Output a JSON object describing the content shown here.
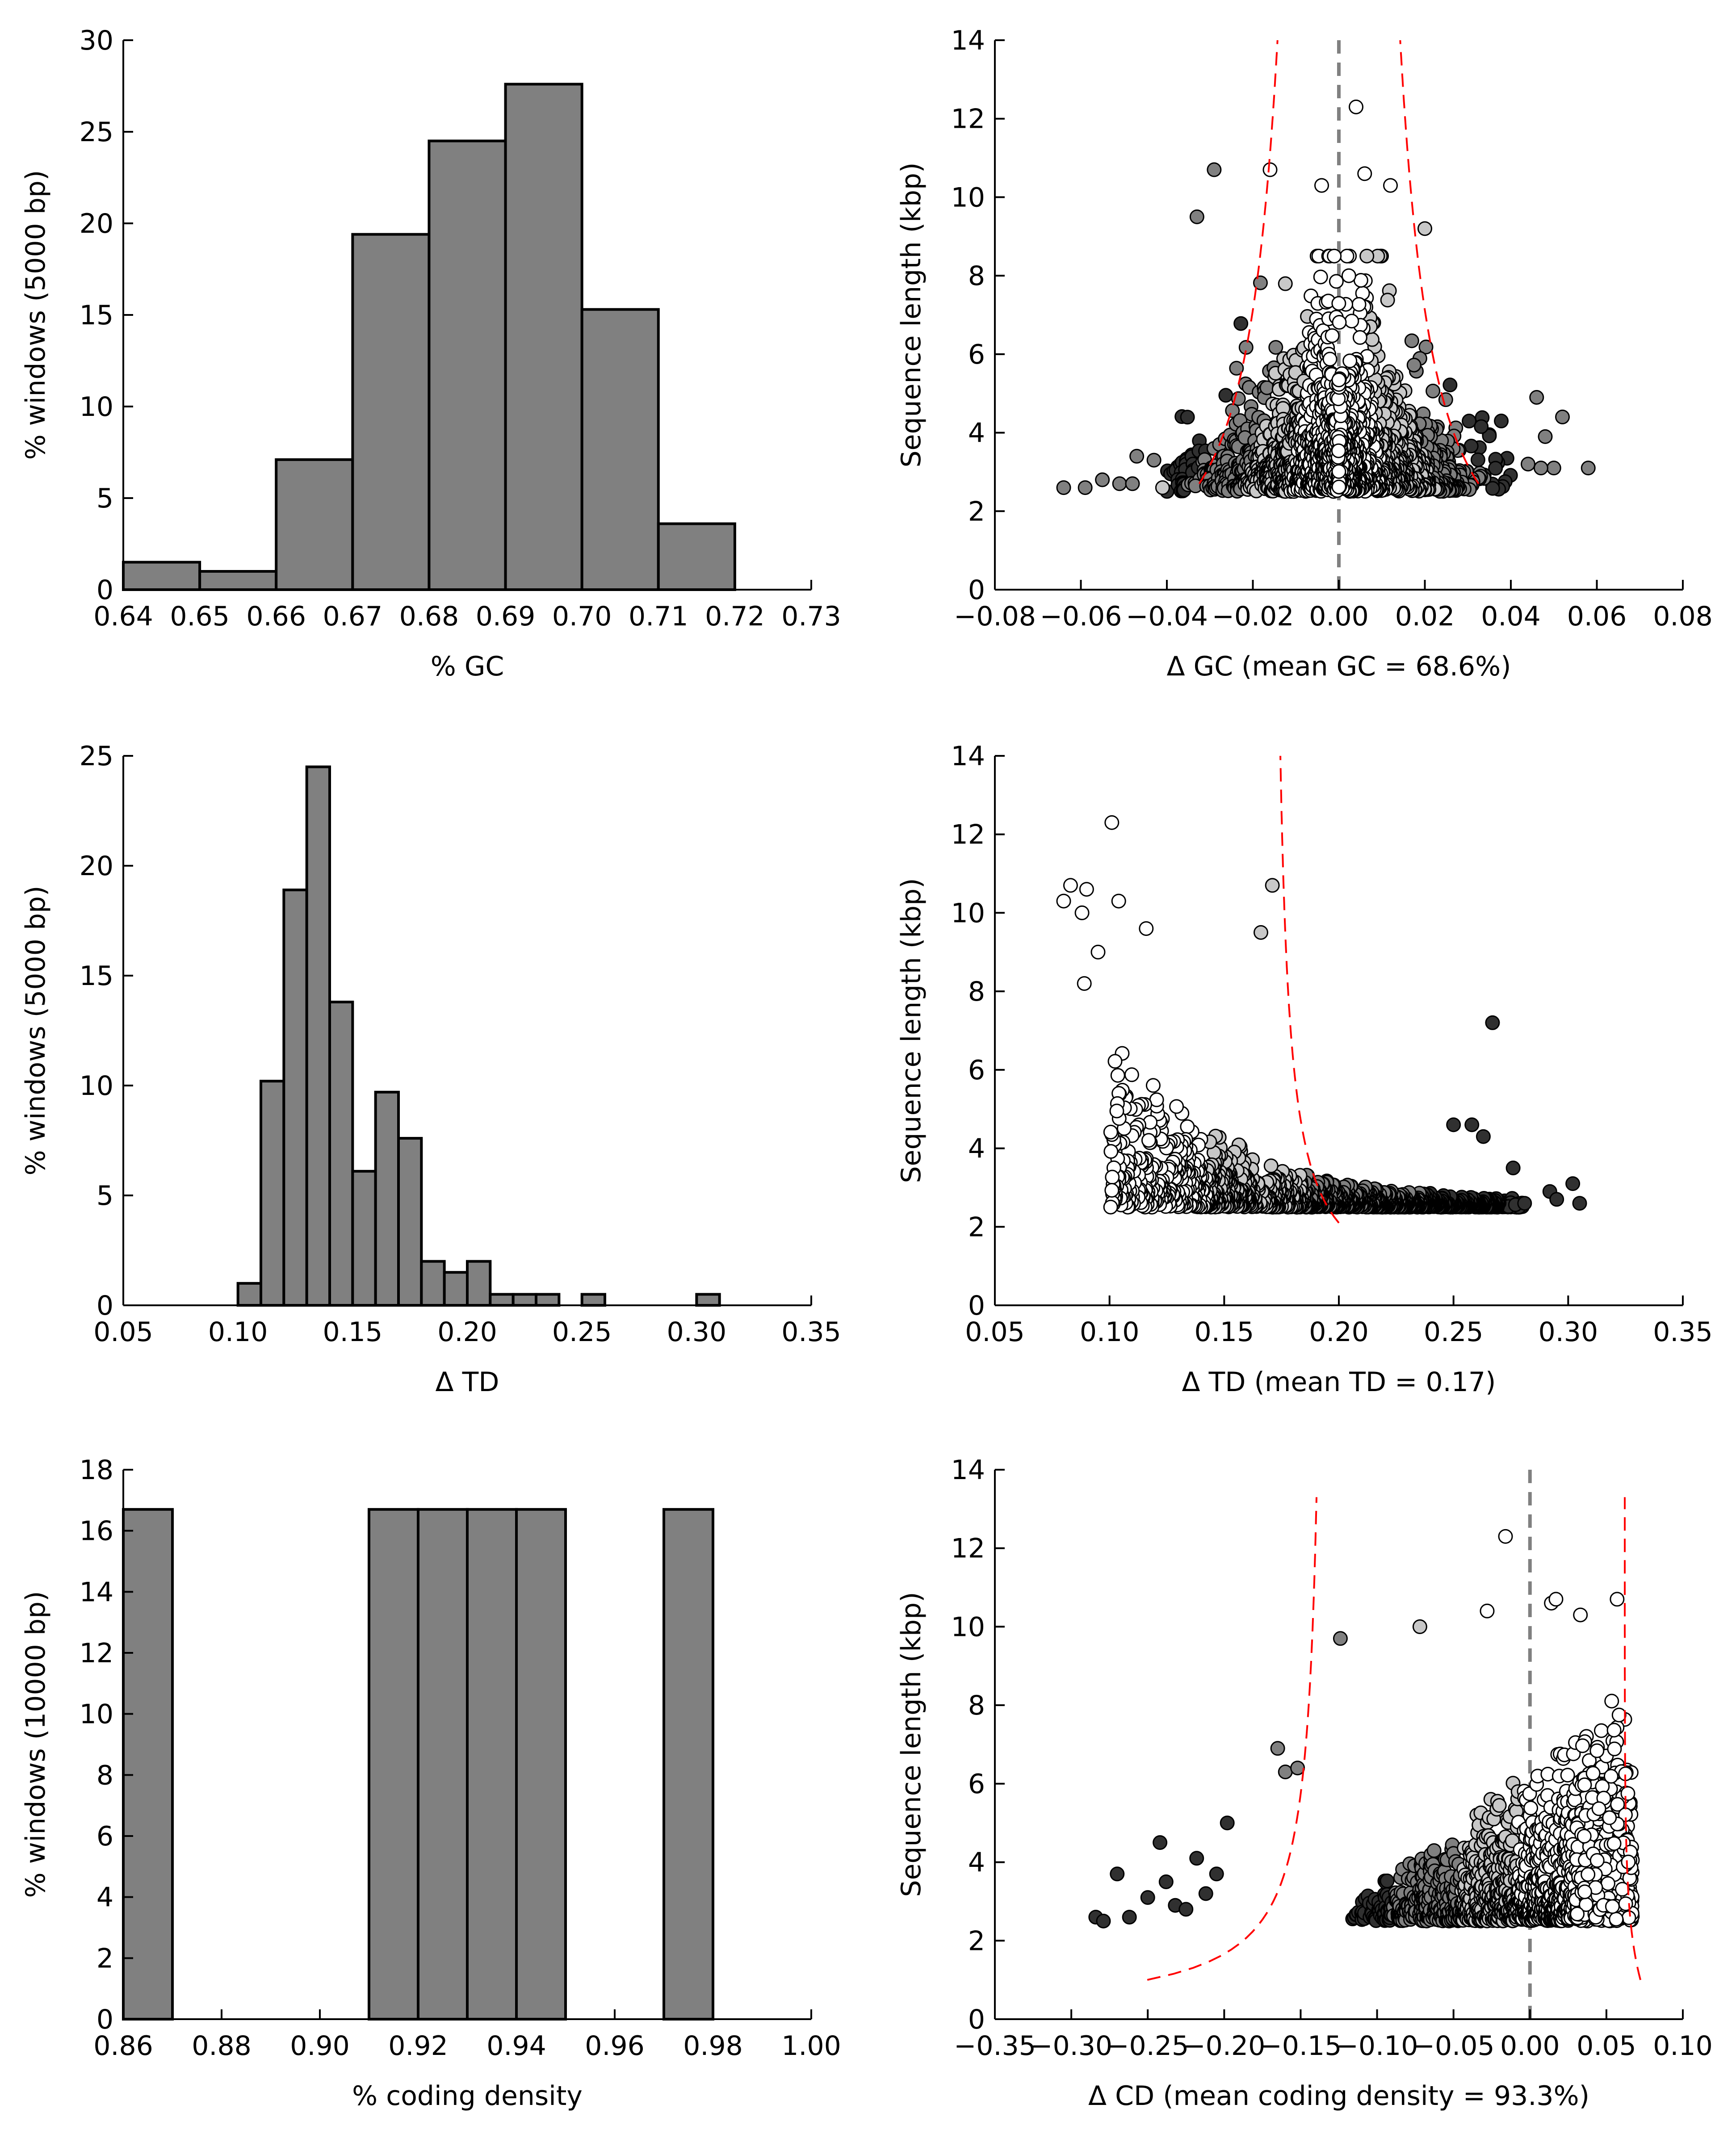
{
  "chart_data": [
    {
      "id": "gc-hist",
      "type": "bar",
      "xlabel": "% GC",
      "ylabel": "% windows (5000 bp)",
      "xlim": [
        0.64,
        0.73
      ],
      "ylim": [
        0,
        30
      ],
      "xticks": [
        "0.64",
        "0.65",
        "0.66",
        "0.67",
        "0.68",
        "0.69",
        "0.70",
        "0.71",
        "0.72",
        "0.73"
      ],
      "yticks": [
        "0",
        "5",
        "10",
        "15",
        "20",
        "25",
        "30"
      ],
      "bin_width": 0.01,
      "bins": [
        {
          "x0": 0.64,
          "value": 1.5
        },
        {
          "x0": 0.65,
          "value": 1.0
        },
        {
          "x0": 0.66,
          "value": 7.1
        },
        {
          "x0": 0.67,
          "value": 19.4
        },
        {
          "x0": 0.68,
          "value": 24.5
        },
        {
          "x0": 0.69,
          "value": 27.6
        },
        {
          "x0": 0.7,
          "value": 15.3
        },
        {
          "x0": 0.71,
          "value": 3.6
        }
      ],
      "bar_color": "#808080"
    },
    {
      "id": "gc-scatter",
      "type": "scatter",
      "xlabel": "Δ GC (mean GC = 68.6%)",
      "ylabel": "Sequence length (kbp)",
      "xlim": [
        -0.08,
        0.08
      ],
      "ylim": [
        0,
        14
      ],
      "xticks": [
        "−0.08",
        "−0.06",
        "−0.04",
        "−0.02",
        "0.00",
        "0.02",
        "0.04",
        "0.06",
        "0.08"
      ],
      "yticks": [
        "0",
        "2",
        "4",
        "6",
        "8",
        "10",
        "12",
        "14"
      ],
      "dashed_zero_line": true,
      "cloud": {
        "count": 1500,
        "xmean": 0.0,
        "xsd": 0.016,
        "ymin": 2.5,
        "scale": 1.1,
        "xmaxabs": 0.04
      },
      "points": [
        {
          "x": -0.064,
          "y": 2.6
        },
        {
          "x": -0.059,
          "y": 2.6
        },
        {
          "x": -0.055,
          "y": 2.8
        },
        {
          "x": -0.051,
          "y": 2.7
        },
        {
          "x": -0.048,
          "y": 2.7
        },
        {
          "x": -0.047,
          "y": 3.4
        },
        {
          "x": -0.043,
          "y": 3.3
        },
        {
          "x": -0.041,
          "y": 2.6
        },
        {
          "x": -0.033,
          "y": 9.5
        },
        {
          "x": -0.029,
          "y": 10.7
        },
        {
          "x": -0.016,
          "y": 10.7
        },
        {
          "x": -0.004,
          "y": 10.3
        },
        {
          "x": 0.004,
          "y": 12.3
        },
        {
          "x": 0.006,
          "y": 10.6
        },
        {
          "x": 0.012,
          "y": 10.3
        },
        {
          "x": 0.02,
          "y": 9.2
        },
        {
          "x": 0.046,
          "y": 4.9
        },
        {
          "x": 0.048,
          "y": 3.9
        },
        {
          "x": 0.052,
          "y": 4.4
        },
        {
          "x": 0.05,
          "y": 3.1
        },
        {
          "x": 0.058,
          "y": 3.1
        },
        {
          "x": 0.044,
          "y": 3.2
        },
        {
          "x": 0.047,
          "y": 3.1
        }
      ],
      "threshold_curve": {
        "const": 0.00285,
        "offset": 0.0,
        "y_from": 2.7,
        "y_to": 14,
        "x_to_right": 0.074
      },
      "colors": {
        "light": "#ffffff",
        "mid": "#c8c8c8",
        "dark": "#808080",
        "darker": "#303030",
        "curve": "#ff0000"
      }
    },
    {
      "id": "td-hist",
      "type": "bar",
      "xlabel": "Δ TD",
      "ylabel": "% windows (5000 bp)",
      "xlim": [
        0.05,
        0.35
      ],
      "ylim": [
        0,
        25
      ],
      "xticks": [
        "0.05",
        "0.10",
        "0.15",
        "0.20",
        "0.25",
        "0.30",
        "0.35"
      ],
      "yticks": [
        "0",
        "5",
        "10",
        "15",
        "20",
        "25"
      ],
      "bin_width": 0.01,
      "bins": [
        {
          "x0": 0.1,
          "value": 1.0
        },
        {
          "x0": 0.11,
          "value": 10.2
        },
        {
          "x0": 0.12,
          "value": 18.9
        },
        {
          "x0": 0.13,
          "value": 24.5
        },
        {
          "x0": 0.14,
          "value": 13.8
        },
        {
          "x0": 0.15,
          "value": 6.1
        },
        {
          "x0": 0.16,
          "value": 9.7
        },
        {
          "x0": 0.17,
          "value": 7.6
        },
        {
          "x0": 0.18,
          "value": 2.0
        },
        {
          "x0": 0.19,
          "value": 1.5
        },
        {
          "x0": 0.2,
          "value": 2.0
        },
        {
          "x0": 0.21,
          "value": 0.5
        },
        {
          "x0": 0.22,
          "value": 0.5
        },
        {
          "x0": 0.23,
          "value": 0.5
        },
        {
          "x0": 0.25,
          "value": 0.5
        },
        {
          "x0": 0.3,
          "value": 0.5
        }
      ],
      "bar_color": "#808080"
    },
    {
      "id": "td-scatter",
      "type": "scatter",
      "xlabel": "Δ TD (mean TD = 0.17)",
      "ylabel": "Sequence length (kbp)",
      "xlim": [
        0.05,
        0.35
      ],
      "ylim": [
        0,
        14
      ],
      "xticks": [
        "0.05",
        "0.10",
        "0.15",
        "0.20",
        "0.25",
        "0.30",
        "0.35"
      ],
      "yticks": [
        "0",
        "2",
        "4",
        "6",
        "8",
        "10",
        "12",
        "14"
      ],
      "dashed_zero_line": false,
      "cloud": {
        "count": 1500,
        "xmin": 0.1,
        "xmax": 0.28,
        "ymin": 2.5,
        "scale": 1.0
      },
      "points": [
        {
          "x": 0.08,
          "y": 10.3
        },
        {
          "x": 0.083,
          "y": 10.7
        },
        {
          "x": 0.088,
          "y": 10.0
        },
        {
          "x": 0.09,
          "y": 10.6
        },
        {
          "x": 0.101,
          "y": 12.3
        },
        {
          "x": 0.104,
          "y": 10.3
        },
        {
          "x": 0.089,
          "y": 8.2
        },
        {
          "x": 0.095,
          "y": 9.0
        },
        {
          "x": 0.116,
          "y": 9.6
        },
        {
          "x": 0.171,
          "y": 10.7
        },
        {
          "x": 0.166,
          "y": 9.5
        },
        {
          "x": 0.267,
          "y": 7.2
        },
        {
          "x": 0.281,
          "y": 2.6
        },
        {
          "x": 0.292,
          "y": 2.9
        },
        {
          "x": 0.302,
          "y": 3.1
        },
        {
          "x": 0.305,
          "y": 2.6
        },
        {
          "x": 0.295,
          "y": 2.7
        },
        {
          "x": 0.276,
          "y": 3.5
        },
        {
          "x": 0.258,
          "y": 4.6
        },
        {
          "x": 0.263,
          "y": 4.3
        },
        {
          "x": 0.25,
          "y": 4.6
        }
      ],
      "threshold_curve": {
        "const": 0.0063,
        "offset": 0.0,
        "y_from": 2.1,
        "y_to": 14,
        "one_sided": true
      },
      "colors": {
        "light": "#ffffff",
        "mid": "#c8c8c8",
        "dark": "#808080",
        "darker": "#303030",
        "curve": "#ff0000"
      }
    },
    {
      "id": "cd-hist",
      "type": "bar",
      "xlabel": "% coding density",
      "ylabel": "% windows (10000 bp)",
      "xlim": [
        0.86,
        1.0
      ],
      "ylim": [
        0,
        18
      ],
      "xticks": [
        "0.86",
        "0.88",
        "0.90",
        "0.92",
        "0.94",
        "0.96",
        "0.98",
        "1.00"
      ],
      "yticks": [
        "0",
        "2",
        "4",
        "6",
        "8",
        "10",
        "12",
        "14",
        "16",
        "18"
      ],
      "bin_width": 0.01,
      "bins": [
        {
          "x0": 0.86,
          "value": 16.7
        },
        {
          "x0": 0.91,
          "value": 16.7
        },
        {
          "x0": 0.92,
          "value": 16.7
        },
        {
          "x0": 0.93,
          "value": 16.7
        },
        {
          "x0": 0.94,
          "value": 16.7
        },
        {
          "x0": 0.97,
          "value": 16.7
        }
      ],
      "bar_color": "#808080"
    },
    {
      "id": "cd-scatter",
      "type": "scatter",
      "xlabel": "Δ CD (mean coding density = 93.3%)",
      "ylabel": "Sequence length (kbp)",
      "xlim": [
        -0.35,
        0.1
      ],
      "ylim": [
        0,
        14
      ],
      "xticks": [
        "−0.35",
        "−0.30",
        "−0.25",
        "−0.20",
        "−0.15",
        "−0.10",
        "−0.05",
        "0.00",
        "0.05",
        "0.10"
      ],
      "yticks": [
        "0",
        "2",
        "4",
        "6",
        "8",
        "10",
        "12",
        "14"
      ],
      "dashed_zero_line": true,
      "cloud": {
        "count": 1500,
        "xmin": -0.12,
        "xmax": 0.067,
        "ymin": 2.5,
        "scale": 1.0
      },
      "points": [
        {
          "x": -0.284,
          "y": 2.6
        },
        {
          "x": -0.279,
          "y": 2.5
        },
        {
          "x": -0.27,
          "y": 3.7
        },
        {
          "x": -0.262,
          "y": 2.6
        },
        {
          "x": -0.25,
          "y": 3.1
        },
        {
          "x": -0.242,
          "y": 4.5
        },
        {
          "x": -0.238,
          "y": 3.5
        },
        {
          "x": -0.232,
          "y": 2.9
        },
        {
          "x": -0.225,
          "y": 2.8
        },
        {
          "x": -0.218,
          "y": 4.1
        },
        {
          "x": -0.212,
          "y": 3.2
        },
        {
          "x": -0.205,
          "y": 3.7
        },
        {
          "x": -0.198,
          "y": 5.0
        },
        {
          "x": -0.165,
          "y": 6.9
        },
        {
          "x": -0.16,
          "y": 6.3
        },
        {
          "x": -0.152,
          "y": 6.4
        },
        {
          "x": -0.124,
          "y": 9.7
        },
        {
          "x": -0.072,
          "y": 10.0
        },
        {
          "x": -0.028,
          "y": 10.4
        },
        {
          "x": -0.016,
          "y": 12.3
        },
        {
          "x": 0.014,
          "y": 10.6
        },
        {
          "x": 0.017,
          "y": 10.7
        },
        {
          "x": 0.033,
          "y": 10.3
        },
        {
          "x": 0.057,
          "y": 10.7
        }
      ],
      "threshold_curve": {
        "const": 0.0235,
        "offset": -0.1328,
        "y_from": 1.0,
        "y_to": 13.3,
        "x_min": -0.35,
        "x_right_base": 0.062
      },
      "colors": {
        "light": "#ffffff",
        "mid": "#c8c8c8",
        "dark": "#808080",
        "darker": "#303030",
        "curve": "#ff0000"
      }
    }
  ]
}
